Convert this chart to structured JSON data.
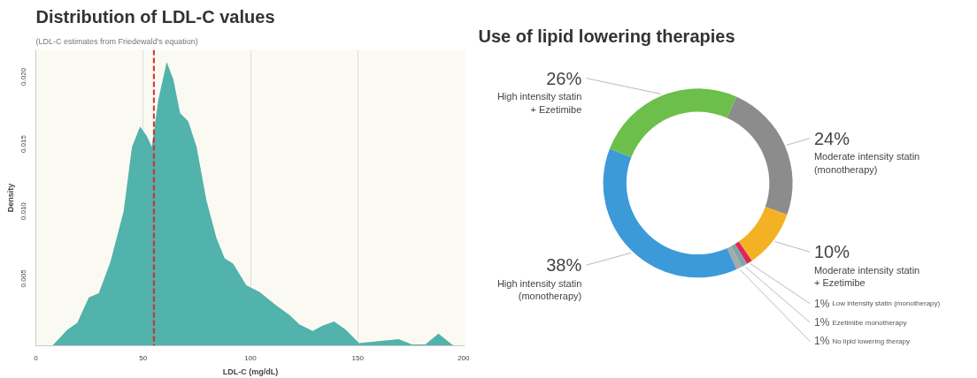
{
  "chart_data": [
    {
      "type": "area",
      "title": "Distribution of LDL-C values",
      "subtitle": "(LDL-C estimates from Friedewald's equation)",
      "xlabel": "LDL-C (mg/dL)",
      "ylabel": "Density",
      "x": [
        7.7,
        14.7,
        19.3,
        24.7,
        29.3,
        34.7,
        40.9,
        44.8,
        48.6,
        51.7,
        54,
        57.1,
        61,
        64.1,
        67.2,
        71,
        74.9,
        79.5,
        84.2,
        88,
        91.9,
        98.1,
        104.2,
        112,
        118.1,
        122.8,
        129,
        133.6,
        139,
        144.4,
        150.6,
        156.8,
        169.1,
        175.3,
        181.5,
        187.6,
        193.8,
        195.4
      ],
      "values": [
        0,
        0.0012,
        0.0017,
        0.0036,
        0.0039,
        0.0062,
        0.01,
        0.0148,
        0.0163,
        0.0156,
        0.0148,
        0.0183,
        0.0211,
        0.0198,
        0.0173,
        0.0167,
        0.0148,
        0.0108,
        0.008,
        0.0065,
        0.0061,
        0.0045,
        0.004,
        0.003,
        0.0023,
        0.0016,
        0.0011,
        0.0015,
        0.0018,
        0.0012,
        0.0002,
        0.0003,
        0.0005,
        0.0001,
        0.0001,
        0.0009,
        0.0001,
        0
      ],
      "color": "#52b2ac",
      "xlim": [
        0,
        200
      ],
      "ylim": [
        0,
        0.022
      ],
      "xticks": [
        0,
        50,
        100,
        150,
        200
      ],
      "yticks": [
        0.005,
        {
          "value": 0.01,
          "label": "0.010"
        },
        0.015,
        {
          "value": 0.02,
          "label": "0.020"
        }
      ],
      "grid": "x",
      "ref_lines": [
        {
          "axis": "x",
          "value": 55,
          "color": "#d62b2b",
          "line_style": "dashed"
        }
      ]
    },
    {
      "type": "donut",
      "title": "Use of lipid lowering therapies",
      "categories": [
        "Moderate intensity statin\n(monotherapy)",
        "Moderate intensity statin\n+ Ezetimibe",
        "Low intensity statin (monotherapy)",
        "Ezetimibe monotherapy",
        "No lipid lowering therapy",
        "High intensity statin\n(monotherapy)",
        "High intensity statin\n+ Ezetimibe"
      ],
      "values": [
        24,
        10,
        1,
        1,
        1,
        38,
        26
      ],
      "value_labels": [
        "24%",
        "10%",
        "1%",
        "1%",
        "1%",
        "38%",
        "26%"
      ],
      "colors": [
        "#8c8c8c",
        "#f3b223",
        "#e0245a",
        "#7ba7a7",
        "#a9a9a9",
        "#3d9ad9",
        "#6cbf4a"
      ]
    }
  ]
}
